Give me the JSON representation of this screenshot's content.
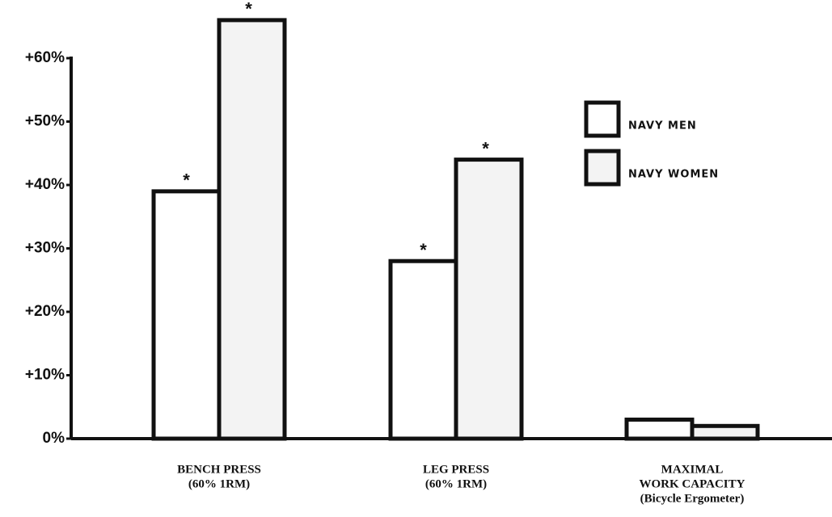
{
  "chart_data": {
    "type": "bar",
    "categories": [
      [
        "BENCH PRESS",
        "(60% 1RM)"
      ],
      [
        "LEG PRESS",
        "(60% 1RM)"
      ],
      [
        "MAXIMAL",
        "WORK CAPACITY",
        "(Bicycle Ergometer)"
      ]
    ],
    "series": [
      {
        "name": "NAVY MEN",
        "color": "#ffffff",
        "values": [
          39,
          28,
          3
        ],
        "markers": [
          "*",
          "*",
          null
        ]
      },
      {
        "name": "NAVY WOMEN",
        "color": "#f3f3f3",
        "values": [
          66,
          44,
          2
        ],
        "markers": [
          "*",
          "*",
          null
        ]
      }
    ],
    "ylim": [
      0,
      69
    ],
    "yticks": [
      {
        "value": 0,
        "label": "0%"
      },
      {
        "value": 10,
        "label": "+10%"
      },
      {
        "value": 20,
        "label": "+20%"
      },
      {
        "value": 30,
        "label": "+30%"
      },
      {
        "value": 40,
        "label": "+40%"
      },
      {
        "value": 50,
        "label": "+50%"
      },
      {
        "value": 60,
        "label": "+60%"
      }
    ],
    "legend": "upper-right"
  }
}
